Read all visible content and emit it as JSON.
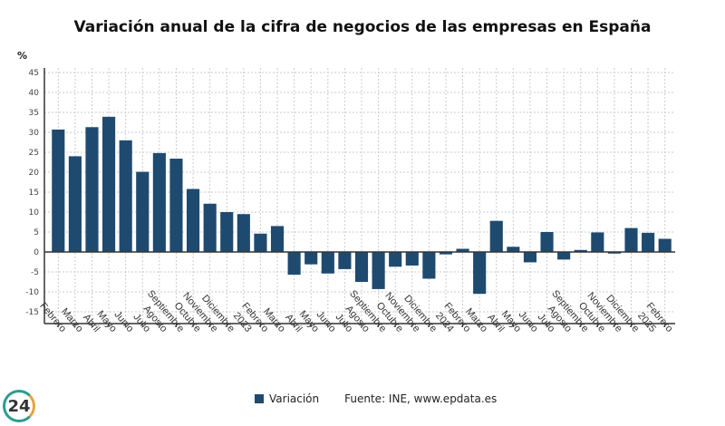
{
  "chart_data": {
    "type": "bar",
    "title": "Variación anual de la cifra de negocios de las empresas en España",
    "ylabel": "%",
    "ylim": [
      -18,
      46
    ],
    "yticks": [
      45,
      40,
      35,
      30,
      25,
      20,
      15,
      10,
      5,
      0,
      -5,
      -10,
      -15
    ],
    "grid": true,
    "legend_position": "bottom",
    "color": "#1f4a70",
    "categories": [
      "Febrero",
      "Marzo",
      "Abril",
      "Mayo",
      "Junio",
      "Julio",
      "Agosto",
      "Septiembre",
      "Octubre",
      "Noviembre",
      "Diciembre",
      "2023",
      "Febrero",
      "Marzo",
      "Abril",
      "Mayo",
      "Junio",
      "Julio",
      "Agosto",
      "Septiembre",
      "Octubre",
      "Noviembre",
      "Diciembre",
      "2024",
      "Febrero",
      "Marzo",
      "Abril",
      "Mayo",
      "Junio",
      "Julio",
      "Agosto",
      "Septiembre",
      "Octubre",
      "Noviembre",
      "Diciembre",
      "2025",
      "Febrero"
    ],
    "series": [
      {
        "name": "Variación",
        "values": [
          30.7,
          24,
          31.3,
          33.9,
          28,
          20.1,
          24.8,
          23.4,
          15.8,
          12.1,
          10,
          9.5,
          4.6,
          6.5,
          -5.7,
          -3.1,
          -5.4,
          -4.3,
          -7.5,
          -9.3,
          -3.7,
          -3.4,
          -6.7,
          -0.6,
          0.8,
          -10.5,
          7.8,
          1.3,
          -2.6,
          5,
          -1.9,
          0.5,
          4.9,
          -0.4,
          6,
          4.8,
          3.3
        ]
      }
    ]
  },
  "source": "Fuente: INE, www.epdata.es",
  "logo": "24"
}
